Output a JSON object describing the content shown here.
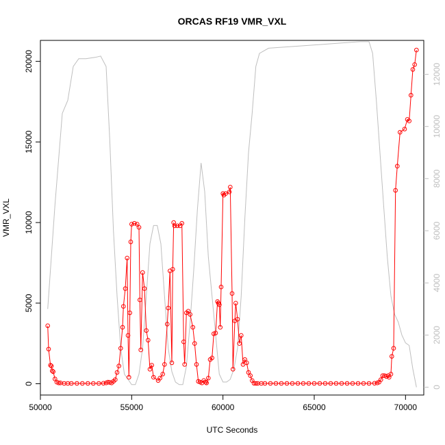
{
  "chart_data": {
    "type": "line",
    "title": "ORCAS RF19 VMR_VXL",
    "xlabel": "UTC Seconds",
    "ylabel": "VMR_VXL",
    "y2label": "",
    "xlim": [
      50000,
      71000
    ],
    "ylim": [
      -700,
      21300
    ],
    "y2lim": [
      -300,
      13300
    ],
    "x_ticks": [
      "50000",
      "55000",
      "60000",
      "65000",
      "70000"
    ],
    "y_ticks": [
      "0",
      "5000",
      "10000",
      "15000",
      "20000"
    ],
    "y2_ticks": [
      "0",
      "2000",
      "4000",
      "6000",
      "8000",
      "10000",
      "12000"
    ],
    "colors": {
      "primary": "#ff0000",
      "secondary": "#bebebe",
      "frame": "#000000"
    },
    "series": [
      {
        "color": "#ff0000",
        "marker": "open-circle",
        "points": [
          [
            50400,
            3600
          ],
          [
            50450,
            2150
          ],
          [
            50550,
            1150
          ],
          [
            50600,
            1100
          ],
          [
            50650,
            800
          ],
          [
            50700,
            750
          ],
          [
            50800,
            300
          ],
          [
            50900,
            100
          ],
          [
            51000,
            50
          ],
          [
            51100,
            50
          ],
          [
            51300,
            20
          ],
          [
            51500,
            20
          ],
          [
            51700,
            20
          ],
          [
            52000,
            20
          ],
          [
            52300,
            20
          ],
          [
            52600,
            20
          ],
          [
            52900,
            20
          ],
          [
            53200,
            20
          ],
          [
            53450,
            30
          ],
          [
            53600,
            50
          ],
          [
            53700,
            100
          ],
          [
            53800,
            80
          ],
          [
            53900,
            50
          ],
          [
            54000,
            150
          ],
          [
            54100,
            250
          ],
          [
            54200,
            700
          ],
          [
            54300,
            1100
          ],
          [
            54400,
            2200
          ],
          [
            54500,
            3500
          ],
          [
            54550,
            4800
          ],
          [
            54650,
            5900
          ],
          [
            54750,
            7800
          ],
          [
            54800,
            3000
          ],
          [
            54850,
            400
          ],
          [
            54900,
            4400
          ],
          [
            54950,
            8800
          ],
          [
            55000,
            9900
          ],
          [
            55150,
            9950
          ],
          [
            55300,
            9900
          ],
          [
            55400,
            9700
          ],
          [
            55450,
            5200
          ],
          [
            55500,
            2100
          ],
          [
            55600,
            6900
          ],
          [
            55700,
            5900
          ],
          [
            55800,
            3300
          ],
          [
            55900,
            2700
          ],
          [
            56000,
            900
          ],
          [
            56100,
            1150
          ],
          [
            56200,
            400
          ],
          [
            56450,
            200
          ],
          [
            56550,
            350
          ],
          [
            56700,
            600
          ],
          [
            56800,
            1200
          ],
          [
            56950,
            3700
          ],
          [
            57000,
            4700
          ],
          [
            57100,
            7000
          ],
          [
            57200,
            1300
          ],
          [
            57250,
            7100
          ],
          [
            57300,
            10000
          ],
          [
            57350,
            9800
          ],
          [
            57500,
            9800
          ],
          [
            57650,
            9800
          ],
          [
            57750,
            9950
          ],
          [
            57850,
            2600
          ],
          [
            57900,
            1200
          ],
          [
            58000,
            4400
          ],
          [
            58100,
            4500
          ],
          [
            58200,
            4300
          ],
          [
            58350,
            3500
          ],
          [
            58450,
            2500
          ],
          [
            58550,
            1200
          ],
          [
            58650,
            150
          ],
          [
            58750,
            100
          ],
          [
            58850,
            50
          ],
          [
            58950,
            200
          ],
          [
            59050,
            100
          ],
          [
            59100,
            50
          ],
          [
            59200,
            350
          ],
          [
            59300,
            1500
          ],
          [
            59400,
            1600
          ],
          [
            59500,
            3100
          ],
          [
            59600,
            3150
          ],
          [
            59700,
            5100
          ],
          [
            59750,
            5000
          ],
          [
            59800,
            4900
          ],
          [
            59850,
            3500
          ],
          [
            59900,
            6000
          ],
          [
            60000,
            11800
          ],
          [
            60050,
            11700
          ],
          [
            60150,
            11800
          ],
          [
            60350,
            11900
          ],
          [
            60400,
            12200
          ],
          [
            60500,
            5600
          ],
          [
            60550,
            900
          ],
          [
            60650,
            3900
          ],
          [
            60700,
            5000
          ],
          [
            60800,
            4000
          ],
          [
            60900,
            2500
          ],
          [
            61000,
            3000
          ],
          [
            61100,
            1200
          ],
          [
            61200,
            1500
          ],
          [
            61300,
            1300
          ],
          [
            61400,
            700
          ],
          [
            61500,
            500
          ],
          [
            61600,
            200
          ],
          [
            61700,
            30
          ],
          [
            61800,
            20
          ],
          [
            61900,
            20
          ],
          [
            62100,
            20
          ],
          [
            62300,
            20
          ],
          [
            62600,
            20
          ],
          [
            62900,
            20
          ],
          [
            63200,
            20
          ],
          [
            63500,
            20
          ],
          [
            63800,
            20
          ],
          [
            64100,
            20
          ],
          [
            64400,
            20
          ],
          [
            64700,
            20
          ],
          [
            65000,
            20
          ],
          [
            65300,
            20
          ],
          [
            65600,
            20
          ],
          [
            65900,
            20
          ],
          [
            66200,
            20
          ],
          [
            66500,
            20
          ],
          [
            66800,
            20
          ],
          [
            67100,
            20
          ],
          [
            67400,
            20
          ],
          [
            67700,
            20
          ],
          [
            68000,
            20
          ],
          [
            68300,
            30
          ],
          [
            68450,
            50
          ],
          [
            68550,
            100
          ],
          [
            68650,
            250
          ],
          [
            68750,
            500
          ],
          [
            68850,
            500
          ],
          [
            68950,
            450
          ],
          [
            69050,
            500
          ],
          [
            69100,
            400
          ],
          [
            69200,
            600
          ],
          [
            69250,
            1700
          ],
          [
            69350,
            2200
          ],
          [
            69450,
            12000
          ],
          [
            69550,
            13500
          ],
          [
            69700,
            15600
          ],
          [
            69950,
            15800
          ],
          [
            70100,
            16400
          ],
          [
            70200,
            16300
          ],
          [
            70300,
            17900
          ],
          [
            70400,
            19500
          ],
          [
            70500,
            19800
          ],
          [
            70600,
            20700
          ]
        ]
      },
      {
        "color": "#bebebe",
        "marker": "none",
        "axis": "right",
        "points": [
          [
            50400,
            3000
          ],
          [
            50800,
            7000
          ],
          [
            51200,
            10500
          ],
          [
            51500,
            11000
          ],
          [
            51800,
            12300
          ],
          [
            52100,
            12600
          ],
          [
            52500,
            12600
          ],
          [
            53000,
            12650
          ],
          [
            53300,
            12700
          ],
          [
            53600,
            12300
          ],
          [
            53800,
            9500
          ],
          [
            54000,
            6000
          ],
          [
            54200,
            3500
          ],
          [
            54400,
            1500
          ],
          [
            54600,
            500
          ],
          [
            54800,
            300
          ],
          [
            55000,
            100
          ],
          [
            55200,
            100
          ],
          [
            55400,
            500
          ],
          [
            55600,
            1500
          ],
          [
            55800,
            3500
          ],
          [
            56000,
            5500
          ],
          [
            56200,
            6200
          ],
          [
            56400,
            6200
          ],
          [
            56600,
            5500
          ],
          [
            56800,
            3500
          ],
          [
            57000,
            1500
          ],
          [
            57200,
            600
          ],
          [
            57400,
            200
          ],
          [
            57600,
            100
          ],
          [
            57800,
            100
          ],
          [
            58000,
            800
          ],
          [
            58200,
            2500
          ],
          [
            58400,
            4500
          ],
          [
            58600,
            6800
          ],
          [
            58800,
            8600
          ],
          [
            59000,
            7500
          ],
          [
            59200,
            5000
          ],
          [
            59400,
            3500
          ],
          [
            59600,
            2000
          ],
          [
            59800,
            500
          ],
          [
            60000,
            200
          ],
          [
            60200,
            200
          ],
          [
            60400,
            300
          ],
          [
            60600,
            700
          ],
          [
            60800,
            1500
          ],
          [
            61000,
            3500
          ],
          [
            61200,
            6500
          ],
          [
            61400,
            9000
          ],
          [
            61600,
            10500
          ],
          [
            61800,
            12300
          ],
          [
            62000,
            12800
          ],
          [
            62500,
            13000
          ],
          [
            63500,
            13050
          ],
          [
            64500,
            13100
          ],
          [
            65500,
            13150
          ],
          [
            66500,
            13200
          ],
          [
            67500,
            13250
          ],
          [
            68000,
            13250
          ],
          [
            68200,
            12800
          ],
          [
            68400,
            11000
          ],
          [
            68600,
            9000
          ],
          [
            68800,
            7000
          ],
          [
            69000,
            5000
          ],
          [
            69200,
            3500
          ],
          [
            69400,
            2800
          ],
          [
            69600,
            2500
          ],
          [
            69800,
            2000
          ],
          [
            70000,
            1700
          ],
          [
            70200,
            1600
          ],
          [
            70400,
            700
          ],
          [
            70600,
            0
          ]
        ]
      }
    ]
  }
}
